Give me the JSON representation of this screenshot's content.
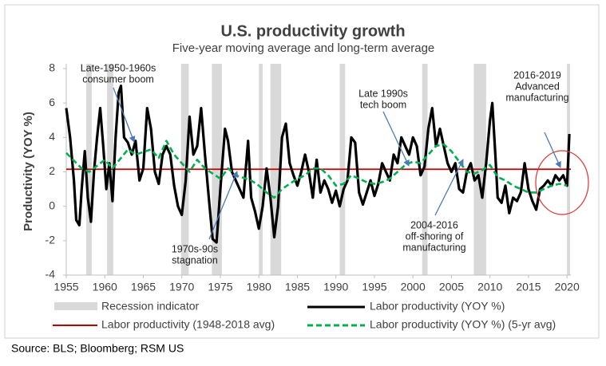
{
  "chart_data": {
    "type": "line",
    "title": "U.S. productivity growth",
    "subtitle": "Five-year moving average and long-term average",
    "y_label": "Productivity (YOY %)",
    "source": "Source: BLS; Bloomberg; RSM US",
    "xlim": [
      1955,
      2020.5
    ],
    "xticks": [
      1955,
      1960,
      1965,
      1970,
      1975,
      1980,
      1985,
      1990,
      1995,
      2000,
      2005,
      2010,
      2015,
      2020
    ],
    "ylim": [
      -4,
      8
    ],
    "yticks": [
      -4,
      -2,
      0,
      2,
      4,
      6,
      8
    ],
    "recessions": {
      "name": "Recession indicator",
      "color": "#d9d9d9",
      "spans": [
        [
          1957.6,
          1958.3
        ],
        [
          1960.3,
          1961.1
        ],
        [
          1969.9,
          1970.9
        ],
        [
          1973.9,
          1975.2
        ],
        [
          1980.0,
          1980.5
        ],
        [
          1981.5,
          1982.9
        ],
        [
          1990.5,
          1991.2
        ],
        [
          2001.2,
          2001.9
        ],
        [
          2007.9,
          2009.5
        ],
        [
          2020.0,
          2020.4
        ]
      ]
    },
    "average": {
      "name": "Labor productivity (1948-2018 avg)",
      "color": "#c00000",
      "value": 2.15
    },
    "series": [
      {
        "name": "Labor productivity (YOY %)",
        "color": "#000000",
        "dash": false,
        "x": [
          1955,
          1955.5,
          1956,
          1956.3,
          1956.7,
          1957,
          1957.4,
          1957.8,
          1958.2,
          1958.6,
          1959,
          1959.4,
          1959.8,
          1960.2,
          1960.6,
          1961,
          1961.4,
          1961.8,
          1962.1,
          1962.5,
          1963,
          1963.5,
          1964,
          1964.5,
          1965,
          1965.5,
          1966,
          1966.5,
          1967,
          1967.5,
          1968,
          1968.5,
          1969,
          1969.5,
          1970,
          1970.5,
          1971,
          1971.5,
          1972,
          1972.5,
          1973,
          1973.5,
          1974,
          1974.5,
          1975,
          1975.6,
          1976,
          1976.5,
          1977,
          1977.5,
          1978,
          1978.6,
          1979,
          1979.5,
          1980,
          1980.5,
          1981,
          1981.5,
          1982,
          1982.5,
          1983,
          1983.5,
          1984,
          1984.5,
          1985,
          1985.5,
          1986,
          1986.5,
          1987,
          1987.5,
          1988,
          1988.5,
          1989,
          1989.5,
          1990,
          1990.5,
          1991,
          1991.5,
          1992,
          1992.5,
          1993,
          1993.5,
          1994,
          1994.5,
          1995,
          1995.5,
          1996,
          1996.5,
          1997,
          1997.5,
          1998,
          1998.5,
          1999,
          1999.5,
          2000,
          2000.5,
          2001,
          2001.5,
          2002,
          2002.5,
          2003,
          2003.5,
          2004,
          2004.5,
          2005,
          2005.5,
          2006,
          2006.5,
          2007,
          2007.5,
          2008,
          2008.5,
          2009,
          2009.5,
          2010,
          2010.3,
          2010.7,
          2011,
          2011.5,
          2012,
          2012.5,
          2013,
          2013.5,
          2014,
          2014.5,
          2015,
          2015.5,
          2016,
          2016.5,
          2017,
          2017.5,
          2018,
          2018.5,
          2019,
          2019.5,
          2020,
          2020.3
        ],
        "values": [
          5.7,
          4,
          1.5,
          -0.8,
          -1.1,
          1,
          3.2,
          0.5,
          -0.9,
          2,
          4,
          5.7,
          3.5,
          1,
          2.5,
          0.3,
          4,
          6.6,
          7,
          4,
          3.7,
          3,
          3.8,
          1.5,
          2.2,
          5.7,
          4.5,
          2,
          1.3,
          3,
          3.5,
          3,
          1.2,
          0,
          -0.5,
          1.5,
          5.2,
          3,
          3.5,
          5.7,
          3,
          0.5,
          -1.9,
          -2.1,
          1,
          4.5,
          3.8,
          2,
          1.5,
          1,
          0.5,
          3.8,
          0.5,
          -0.3,
          -1.3,
          0,
          2.2,
          0.5,
          -1.8,
          0,
          4,
          4.8,
          2.5,
          1.8,
          1.2,
          2,
          3,
          2,
          0.5,
          2.7,
          0.8,
          1.5,
          1,
          0.2,
          0.9,
          0,
          1,
          1.5,
          4,
          3.7,
          0.8,
          0.1,
          0.8,
          1.5,
          0.6,
          1.3,
          2.5,
          2,
          1.5,
          3,
          2.5,
          4,
          3.5,
          3,
          4,
          3.5,
          1.8,
          2.3,
          4.5,
          5.7,
          3.5,
          4.5,
          3.5,
          2.5,
          2,
          2.5,
          1,
          0.8,
          2,
          2.5,
          1.5,
          1.8,
          0.5,
          2.5,
          5,
          6,
          3,
          0.5,
          0.2,
          1.2,
          -0.4,
          0.5,
          0.3,
          0.8,
          2.5,
          1,
          0.3,
          -0.2,
          1,
          1.2,
          1.5,
          1.2,
          1.8,
          1.5,
          1.8,
          1.2,
          4.2
        ]
      },
      {
        "name": "Labor productivity (YOY %) (5-yr avg)",
        "color": "#00b050",
        "dash": true,
        "x": [
          1955,
          1957,
          1958,
          1960,
          1961,
          1963,
          1964,
          1966,
          1967,
          1968,
          1969,
          1971,
          1972,
          1973,
          1975,
          1976,
          1977,
          1979,
          1980,
          1981,
          1982,
          1983,
          1984,
          1985,
          1986,
          1987,
          1988,
          1989,
          1990,
          1991,
          1992,
          1993,
          1994,
          1995,
          1996,
          1997,
          1998,
          1999,
          2000,
          2001,
          2002,
          2003,
          2004,
          2005,
          2006,
          2007,
          2008,
          2009,
          2010,
          2011,
          2012,
          2013,
          2014,
          2015,
          2016,
          2017,
          2018,
          2019,
          2020
        ],
        "values": [
          3.1,
          2.2,
          2.0,
          2.7,
          2.2,
          3.3,
          3.0,
          3.3,
          2.8,
          3.8,
          3.0,
          2.0,
          2.7,
          2.2,
          1.6,
          2.2,
          1.8,
          1.5,
          1.2,
          0.8,
          0.5,
          1,
          1.3,
          1.6,
          1.8,
          2.2,
          2.2,
          1.8,
          1.2,
          1.3,
          1.8,
          1.6,
          1.4,
          1.3,
          1.4,
          1.6,
          2.0,
          2.4,
          2.6,
          2.5,
          3.0,
          3.5,
          3.6,
          3.2,
          2.6,
          2.0,
          1.9,
          2.1,
          2.4,
          1.7,
          1.5,
          1.2,
          1,
          0.8,
          0.8,
          1.0,
          1.2,
          1.3,
          1.2
        ]
      }
    ],
    "annotations": [
      {
        "lines": [
          "Late-1950-1960s",
          "consumer boom"
        ]
      },
      {
        "lines": [
          "Late 1990s",
          "tech boom"
        ]
      },
      {
        "lines": [
          "2016-2019",
          "Advanced",
          "manufacturing"
        ]
      },
      {
        "lines": [
          "1970s-90s",
          "stagnation"
        ]
      },
      {
        "lines": [
          "2004-2016",
          "off-shoring of",
          "manufacturing"
        ]
      }
    ]
  }
}
